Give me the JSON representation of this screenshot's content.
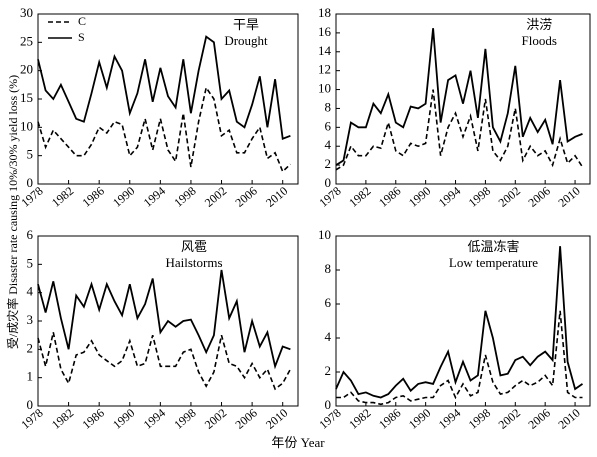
{
  "xlabel": "年份 Year",
  "ylabel": "受/成灾率 Disaster rate causing 10%/30% yield loss (%)",
  "chart_data": [
    {
      "type": "line",
      "title": "干旱",
      "subtitle": "Drought",
      "legend": "upper left",
      "x": [
        1978,
        1979,
        1980,
        1981,
        1982,
        1983,
        1984,
        1985,
        1986,
        1987,
        1988,
        1989,
        1990,
        1991,
        1992,
        1993,
        1994,
        1995,
        1996,
        1997,
        1998,
        1999,
        2000,
        2001,
        2002,
        2003,
        2004,
        2005,
        2006,
        2007,
        2008,
        2009,
        2010,
        2011
      ],
      "xlim": [
        1978,
        2012
      ],
      "xticks": [
        1978,
        1982,
        1986,
        1990,
        1994,
        1998,
        2002,
        2006,
        2010
      ],
      "ylim": [
        0,
        30
      ],
      "yticks": [
        0,
        5,
        10,
        15,
        20,
        25,
        30
      ],
      "series": [
        {
          "name": "C",
          "color": "#000000",
          "linestyle": "dashed",
          "values": [
            11,
            6.5,
            9.5,
            8,
            6.5,
            5,
            5,
            7,
            10,
            9,
            11,
            10.5,
            5,
            6.5,
            11.5,
            6,
            11.5,
            6,
            4,
            12.5,
            3,
            11,
            17,
            15,
            8.5,
            9.5,
            5.5,
            5.5,
            8,
            10,
            4.5,
            5.5,
            2.2,
            3.5
          ]
        },
        {
          "name": "S",
          "color": "#000000",
          "linestyle": "solid",
          "values": [
            22,
            16.5,
            15,
            17.5,
            14.5,
            11.5,
            11,
            16,
            21.5,
            17,
            22.5,
            20,
            12.5,
            16,
            22,
            14.5,
            20.5,
            15.5,
            13.5,
            22,
            12.5,
            20,
            26,
            25,
            15,
            16.5,
            11,
            10,
            14,
            19,
            10,
            18.5,
            8,
            8.5
          ]
        }
      ]
    },
    {
      "type": "line",
      "title": "洪涝",
      "subtitle": "Floods",
      "x": [
        1978,
        1979,
        1980,
        1981,
        1982,
        1983,
        1984,
        1985,
        1986,
        1987,
        1988,
        1989,
        1990,
        1991,
        1992,
        1993,
        1994,
        1995,
        1996,
        1997,
        1998,
        1999,
        2000,
        2001,
        2002,
        2003,
        2004,
        2005,
        2006,
        2007,
        2008,
        2009,
        2010,
        2011
      ],
      "xlim": [
        1978,
        2012
      ],
      "xticks": [
        1978,
        1982,
        1986,
        1990,
        1994,
        1998,
        2002,
        2006,
        2010
      ],
      "ylim": [
        0,
        18
      ],
      "yticks": [
        0,
        2,
        4,
        6,
        8,
        10,
        12,
        14,
        16,
        18
      ],
      "series": [
        {
          "name": "C",
          "color": "#000000",
          "linestyle": "dashed",
          "values": [
            1.5,
            2,
            4,
            3,
            3,
            4,
            3.8,
            6.5,
            3.5,
            3,
            4.3,
            4,
            4.3,
            10,
            3,
            6,
            7.5,
            5,
            7.2,
            3.5,
            9,
            3.5,
            2.5,
            4,
            8,
            2.5,
            4,
            3,
            3.5,
            2,
            4.8,
            2.2,
            3,
            1.8
          ]
        },
        {
          "name": "S",
          "color": "#000000",
          "linestyle": "solid",
          "values": [
            2,
            2.5,
            6.5,
            6,
            6,
            8.5,
            7.5,
            9.5,
            6.5,
            6,
            8.2,
            8,
            8.5,
            16.5,
            6.5,
            11,
            11.5,
            8.5,
            12,
            7,
            14.3,
            6,
            4.5,
            7.5,
            12.5,
            5,
            7,
            5.5,
            6.8,
            4.2,
            11,
            4.5,
            5,
            5.3
          ]
        }
      ]
    },
    {
      "type": "line",
      "title": "风雹",
      "subtitle": "Hailstorms",
      "x": [
        1978,
        1979,
        1980,
        1981,
        1982,
        1983,
        1984,
        1985,
        1986,
        1987,
        1988,
        1989,
        1990,
        1991,
        1992,
        1993,
        1994,
        1995,
        1996,
        1997,
        1998,
        1999,
        2000,
        2001,
        2002,
        2003,
        2004,
        2005,
        2006,
        2007,
        2008,
        2009,
        2010,
        2011
      ],
      "xlim": [
        1978,
        2012
      ],
      "xticks": [
        1978,
        1982,
        1986,
        1990,
        1994,
        1998,
        2002,
        2006,
        2010
      ],
      "ylim": [
        0,
        6
      ],
      "yticks": [
        0,
        1,
        2,
        3,
        4,
        5,
        6
      ],
      "series": [
        {
          "name": "C",
          "color": "#000000",
          "linestyle": "dashed",
          "values": [
            2.4,
            1.4,
            2.6,
            1.3,
            0.8,
            1.8,
            1.9,
            2.3,
            1.8,
            1.6,
            1.4,
            1.6,
            2.3,
            1.4,
            1.5,
            2.5,
            1.4,
            1.4,
            1.4,
            1.9,
            2,
            1.2,
            0.7,
            1.2,
            2.5,
            1.5,
            1.4,
            1,
            1.5,
            1,
            1.3,
            0.6,
            0.8,
            1.3
          ]
        },
        {
          "name": "S",
          "color": "#000000",
          "linestyle": "solid",
          "values": [
            4.3,
            3.3,
            4.4,
            3.1,
            2,
            3.9,
            3.5,
            4.3,
            3.4,
            4.3,
            3.7,
            3.2,
            4.3,
            3.1,
            3.6,
            4.5,
            2.6,
            3,
            2.8,
            3,
            3.05,
            2.5,
            1.9,
            2.5,
            4.8,
            3.1,
            3.7,
            1.9,
            3,
            2.1,
            2.6,
            1.4,
            2.1,
            2
          ]
        }
      ]
    },
    {
      "type": "line",
      "title": "低温冻害",
      "subtitle": "Low temperature",
      "x": [
        1978,
        1979,
        1980,
        1981,
        1982,
        1983,
        1984,
        1985,
        1986,
        1987,
        1988,
        1989,
        1990,
        1991,
        1992,
        1993,
        1994,
        1995,
        1996,
        1997,
        1998,
        1999,
        2000,
        2001,
        2002,
        2003,
        2004,
        2005,
        2006,
        2007,
        2008,
        2009,
        2010,
        2011
      ],
      "xlim": [
        1978,
        2012
      ],
      "xticks": [
        1978,
        1982,
        1986,
        1990,
        1994,
        1998,
        2002,
        2006,
        2010
      ],
      "ylim": [
        0,
        10
      ],
      "yticks": [
        0,
        2,
        4,
        6,
        8,
        10
      ],
      "series": [
        {
          "name": "C",
          "color": "#000000",
          "linestyle": "dashed",
          "values": [
            0.5,
            0.5,
            0.8,
            0.3,
            0.2,
            0.2,
            0.1,
            0.2,
            0.5,
            0.6,
            0.3,
            0.4,
            0.5,
            0.5,
            1.2,
            1.5,
            0.5,
            1.3,
            0.6,
            0.8,
            3,
            1.4,
            0.7,
            0.8,
            1.2,
            1.5,
            1.2,
            1.4,
            1.8,
            1.2,
            5.6,
            0.8,
            0.5,
            0.5
          ]
        },
        {
          "name": "S",
          "color": "#000000",
          "linestyle": "solid",
          "values": [
            1,
            2,
            1.5,
            0.7,
            0.8,
            0.6,
            0.5,
            0.7,
            1.2,
            1.6,
            0.9,
            1.3,
            1.4,
            1.3,
            2.3,
            3.2,
            1.4,
            2.6,
            1.5,
            1.8,
            5.6,
            4,
            1.8,
            1.9,
            2.7,
            2.9,
            2.4,
            2.9,
            3.2,
            2.7,
            9.4,
            2.6,
            1,
            1.3
          ]
        }
      ]
    }
  ]
}
